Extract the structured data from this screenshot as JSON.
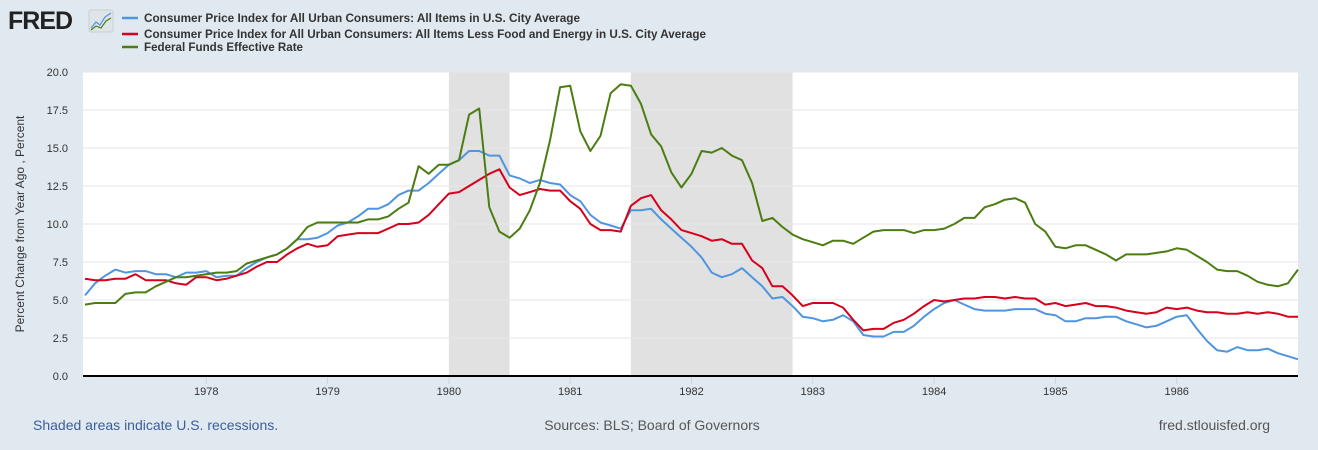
{
  "logo": {
    "text": "FRED"
  },
  "colors": {
    "background": "#e1e9f0",
    "plot": "#ffffff",
    "recession": "#e1e1e1",
    "grid": "#e6e6e6"
  },
  "chart_data": {
    "type": "line",
    "title": "",
    "xlabel": "",
    "ylabel": "Percent Change from Year Ago , Percent",
    "ylim": [
      0,
      20
    ],
    "y_ticks": [
      "0.0",
      "2.5",
      "5.0",
      "7.5",
      "10.0",
      "12.5",
      "15.0",
      "17.5",
      "20.0"
    ],
    "x_ticks": [
      "1978",
      "1979",
      "1980",
      "1981",
      "1982",
      "1983",
      "1984",
      "1985",
      "1986"
    ],
    "grid": true,
    "legend_position": "top-left",
    "recessions": [
      [
        "1980-01",
        "1980-07"
      ],
      [
        "1981-07",
        "1982-11"
      ]
    ],
    "x": [
      "1977-01",
      "1977-02",
      "1977-03",
      "1977-04",
      "1977-05",
      "1977-06",
      "1977-07",
      "1977-08",
      "1977-09",
      "1977-10",
      "1977-11",
      "1977-12",
      "1978-01",
      "1978-02",
      "1978-03",
      "1978-04",
      "1978-05",
      "1978-06",
      "1978-07",
      "1978-08",
      "1978-09",
      "1978-10",
      "1978-11",
      "1978-12",
      "1979-01",
      "1979-02",
      "1979-03",
      "1979-04",
      "1979-05",
      "1979-06",
      "1979-07",
      "1979-08",
      "1979-09",
      "1979-10",
      "1979-11",
      "1979-12",
      "1980-01",
      "1980-02",
      "1980-03",
      "1980-04",
      "1980-05",
      "1980-06",
      "1980-07",
      "1980-08",
      "1980-09",
      "1980-10",
      "1980-11",
      "1980-12",
      "1981-01",
      "1981-02",
      "1981-03",
      "1981-04",
      "1981-05",
      "1981-06",
      "1981-07",
      "1981-08",
      "1981-09",
      "1981-10",
      "1981-11",
      "1981-12",
      "1982-01",
      "1982-02",
      "1982-03",
      "1982-04",
      "1982-05",
      "1982-06",
      "1982-07",
      "1982-08",
      "1982-09",
      "1982-10",
      "1982-11",
      "1982-12",
      "1983-01",
      "1983-02",
      "1983-03",
      "1983-04",
      "1983-05",
      "1983-06",
      "1983-07",
      "1983-08",
      "1983-09",
      "1983-10",
      "1983-11",
      "1983-12",
      "1984-01",
      "1984-02",
      "1984-03",
      "1984-04",
      "1984-05",
      "1984-06",
      "1984-07",
      "1984-08",
      "1984-09",
      "1984-10",
      "1984-11",
      "1984-12",
      "1985-01",
      "1985-02",
      "1985-03",
      "1985-04",
      "1985-05",
      "1985-06",
      "1985-07",
      "1985-08",
      "1985-09",
      "1985-10",
      "1985-11",
      "1985-12",
      "1986-01",
      "1986-02",
      "1986-03",
      "1986-04",
      "1986-05",
      "1986-06",
      "1986-07",
      "1986-08",
      "1986-09",
      "1986-10",
      "1986-11",
      "1986-12",
      "1987-01"
    ],
    "series": [
      {
        "name": "Consumer Price Index for All Urban Consumers: All Items in U.S. City Average",
        "color": "#4f95e0",
        "values": [
          5.3,
          6.1,
          6.6,
          7.0,
          6.8,
          6.9,
          6.9,
          6.7,
          6.7,
          6.5,
          6.8,
          6.8,
          6.9,
          6.5,
          6.6,
          6.6,
          7.1,
          7.5,
          7.8,
          8.0,
          8.4,
          9.0,
          9.0,
          9.1,
          9.4,
          9.9,
          10.1,
          10.5,
          11.0,
          11.0,
          11.3,
          11.9,
          12.2,
          12.2,
          12.7,
          13.3,
          13.9,
          14.2,
          14.8,
          14.8,
          14.5,
          14.5,
          13.2,
          13.0,
          12.7,
          12.9,
          12.7,
          12.6,
          11.9,
          11.5,
          10.6,
          10.1,
          9.9,
          9.7,
          10.9,
          10.9,
          11.0,
          10.3,
          9.7,
          9.1,
          8.5,
          7.8,
          6.8,
          6.5,
          6.7,
          7.1,
          6.5,
          5.9,
          5.1,
          5.2,
          4.6,
          3.9,
          3.8,
          3.6,
          3.7,
          4.0,
          3.6,
          2.7,
          2.6,
          2.6,
          2.9,
          2.9,
          3.3,
          3.9,
          4.4,
          4.8,
          5.0,
          4.7,
          4.4,
          4.3,
          4.3,
          4.3,
          4.4,
          4.4,
          4.4,
          4.1,
          4.0,
          3.6,
          3.6,
          3.8,
          3.8,
          3.9,
          3.9,
          3.6,
          3.4,
          3.2,
          3.3,
          3.6,
          3.9,
          4.0,
          3.1,
          2.3,
          1.7,
          1.6,
          1.9,
          1.7,
          1.7,
          1.8,
          1.5,
          1.3,
          1.1
        ]
      },
      {
        "name": "Consumer Price Index for All Urban Consumers: All Items Less Food and Energy in U.S. City Average",
        "color": "#d6001c",
        "values": [
          6.4,
          6.3,
          6.3,
          6.4,
          6.4,
          6.7,
          6.3,
          6.3,
          6.3,
          6.1,
          6.0,
          6.5,
          6.5,
          6.3,
          6.4,
          6.6,
          6.8,
          7.2,
          7.5,
          7.5,
          8.0,
          8.4,
          8.7,
          8.5,
          8.6,
          9.2,
          9.3,
          9.4,
          9.4,
          9.4,
          9.7,
          10.0,
          10.0,
          10.1,
          10.6,
          11.3,
          12.0,
          12.1,
          12.5,
          12.9,
          13.3,
          13.6,
          12.4,
          11.9,
          12.1,
          12.3,
          12.2,
          12.2,
          11.5,
          11.0,
          10.0,
          9.6,
          9.6,
          9.5,
          11.2,
          11.7,
          11.9,
          10.9,
          10.3,
          9.6,
          9.4,
          9.2,
          8.9,
          9.0,
          8.7,
          8.7,
          7.6,
          7.1,
          5.9,
          5.9,
          5.3,
          4.6,
          4.8,
          4.8,
          4.8,
          4.5,
          3.7,
          3.0,
          3.1,
          3.1,
          3.5,
          3.7,
          4.1,
          4.6,
          5.0,
          4.9,
          5.0,
          5.1,
          5.1,
          5.2,
          5.2,
          5.1,
          5.2,
          5.1,
          5.1,
          4.7,
          4.8,
          4.6,
          4.7,
          4.8,
          4.6,
          4.6,
          4.5,
          4.3,
          4.2,
          4.1,
          4.2,
          4.5,
          4.4,
          4.5,
          4.3,
          4.2,
          4.2,
          4.1,
          4.1,
          4.2,
          4.1,
          4.2,
          4.1,
          3.9,
          3.9
        ]
      },
      {
        "name": "Federal Funds Effective Rate",
        "color": "#4b7d12",
        "values": [
          4.7,
          4.8,
          4.8,
          4.8,
          5.4,
          5.5,
          5.5,
          5.9,
          6.2,
          6.5,
          6.5,
          6.6,
          6.7,
          6.8,
          6.8,
          6.9,
          7.4,
          7.6,
          7.8,
          8.0,
          8.4,
          9.0,
          9.8,
          10.1,
          10.1,
          10.1,
          10.1,
          10.1,
          10.3,
          10.3,
          10.5,
          11.0,
          11.4,
          13.8,
          13.3,
          13.9,
          13.9,
          14.2,
          17.2,
          17.6,
          11.1,
          9.5,
          9.1,
          9.7,
          10.9,
          12.7,
          15.5,
          19.0,
          19.1,
          16.1,
          14.8,
          15.8,
          18.6,
          19.2,
          19.1,
          17.9,
          15.9,
          15.1,
          13.4,
          12.4,
          13.3,
          14.8,
          14.7,
          15.0,
          14.5,
          14.2,
          12.7,
          10.2,
          10.4,
          9.8,
          9.3,
          9.0,
          8.8,
          8.6,
          8.9,
          8.9,
          8.7,
          9.1,
          9.5,
          9.6,
          9.6,
          9.6,
          9.4,
          9.6,
          9.6,
          9.7,
          10.0,
          10.4,
          10.4,
          11.1,
          11.3,
          11.6,
          11.7,
          11.4,
          10.0,
          9.5,
          8.5,
          8.4,
          8.6,
          8.6,
          8.3,
          8.0,
          7.6,
          8.0,
          8.0,
          8.0,
          8.1,
          8.2,
          8.4,
          8.3,
          7.9,
          7.5,
          7.0,
          6.9,
          6.9,
          6.6,
          6.2,
          6.0,
          5.9,
          6.1,
          7.0
        ]
      }
    ]
  },
  "footer": {
    "recession_note": "Shaded areas indicate U.S. recessions.",
    "sources": "Sources: BLS; Board of Governors",
    "site": "fred.stlouisfed.org"
  }
}
